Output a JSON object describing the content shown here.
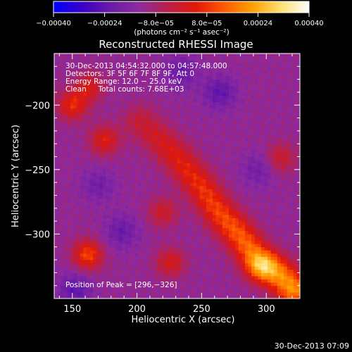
{
  "chart_data": {
    "type": "heatmap",
    "title": "Reconstructed RHESSI Image",
    "xlabel": "Heliocentric X (arcsec)",
    "ylabel": "Heliocentric Y (arcsec)",
    "xlim": [
      136,
      326
    ],
    "ylim": [
      -350,
      -160
    ],
    "x_ticks": [
      150,
      200,
      250,
      300
    ],
    "y_ticks": [
      -300,
      -250,
      -200
    ],
    "x_tick_labels": [
      "150",
      "200",
      "250",
      "300"
    ],
    "y_tick_labels": [
      "−300",
      "−250",
      "−200"
    ],
    "colorbar": {
      "range": [
        -0.0004,
        0.0004
      ],
      "ticks": [
        -0.0004,
        -0.00024,
        -8e-05,
        8e-05,
        0.00024,
        0.0004
      ],
      "tick_labels": [
        "−0.00040",
        "−0.00024",
        "−8.0e−05",
        "8.0e−05",
        "0.00024",
        "0.00040"
      ],
      "unit_label": "(photons cm⁻² s⁻¹ asec⁻²)",
      "colormap": [
        "#0000ff",
        "#3a00c8",
        "#6a1aa6",
        "#8c2aa0",
        "#b8204a",
        "#e0180a",
        "#ff5a00",
        "#ffa000",
        "#ffe070",
        "#ffffff"
      ]
    },
    "annotations": [
      "30-Dec-2013 04:54:32.000 to 04:57:48.000",
      "Detectors: 3F 5F 6F 7F 8F 9F, Att 0",
      "Energy Range: 12.0 − 25.0 keV",
      "Clean     Total counts: 7.68E+03",
      "Position of Peak = [296,−326]"
    ],
    "peak_position": [
      296,
      -326
    ],
    "features": {
      "main_ridge": [
        [
          202,
          -213
        ],
        [
          230,
          -240
        ],
        [
          248,
          -262
        ],
        [
          262,
          -282
        ],
        [
          278,
          -300
        ],
        [
          292,
          -318
        ],
        [
          308,
          -330
        ],
        [
          320,
          -342
        ]
      ],
      "blobs": [
        {
          "x": 162,
          "y": -316,
          "value": 0.00022
        },
        {
          "x": 150,
          "y": -200,
          "value": 0.00018
        },
        {
          "x": 163,
          "y": -186,
          "value": 0.00014
        },
        {
          "x": 175,
          "y": -227,
          "value": 0.00016
        },
        {
          "x": 220,
          "y": -283,
          "value": 0.00012
        },
        {
          "x": 226,
          "y": -322,
          "value": 0.00014
        },
        {
          "x": 311,
          "y": -241,
          "value": 0.00012
        }
      ],
      "negative_lobes": [
        {
          "x": 152,
          "y": -343,
          "value": -0.00024
        },
        {
          "x": 170,
          "y": -262,
          "value": -0.0002
        },
        {
          "x": 188,
          "y": -298,
          "value": -0.00022
        },
        {
          "x": 234,
          "y": -174,
          "value": -0.00022
        },
        {
          "x": 264,
          "y": -190,
          "value": -0.00024
        },
        {
          "x": 294,
          "y": -250,
          "value": -0.0002
        }
      ]
    }
  },
  "footer_timestamp": "30-Dec-2013 07:09"
}
